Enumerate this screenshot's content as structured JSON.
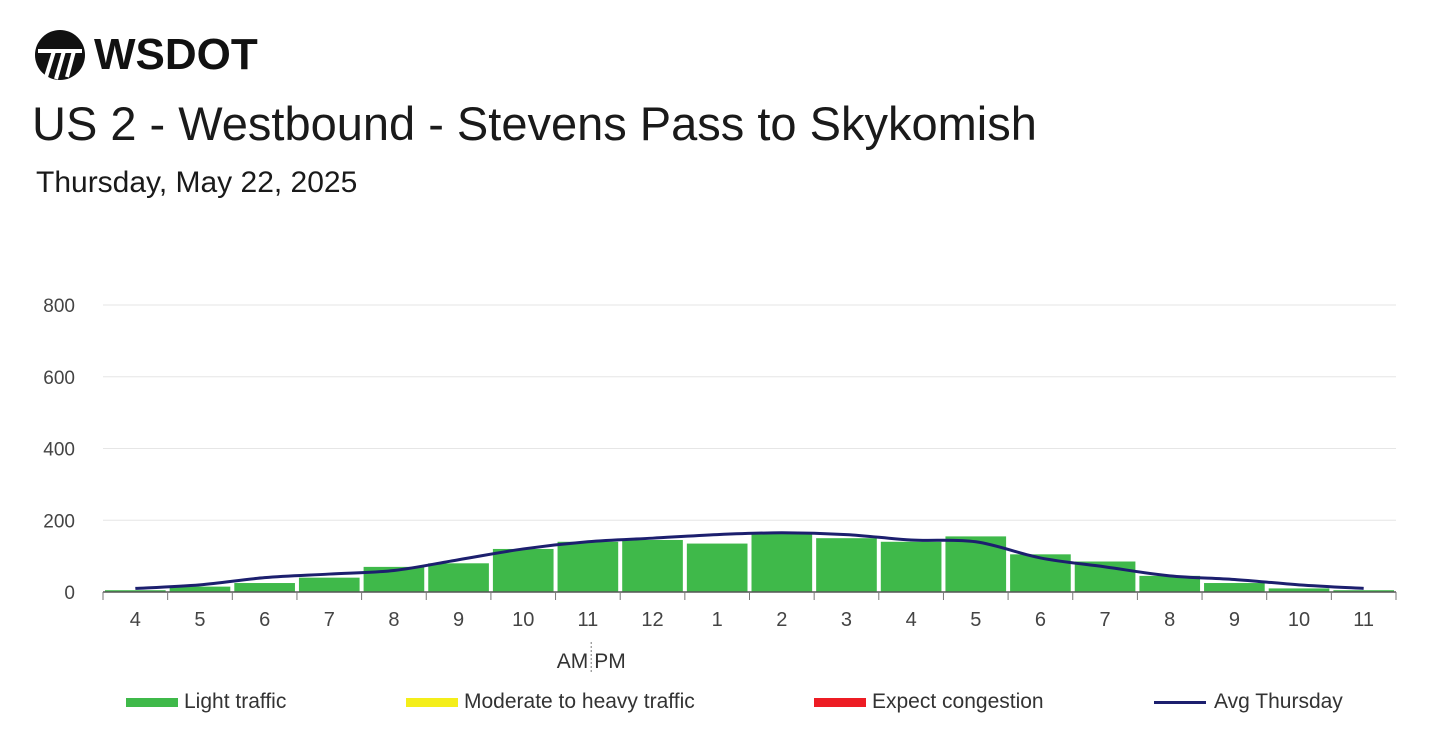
{
  "header": {
    "logo_text": "WSDOT",
    "title": "US 2 - Westbound - Stevens Pass to Skykomish",
    "subtitle": "Thursday, May 22, 2025"
  },
  "colors": {
    "light": "#3fb94a",
    "moderate": "#f4ee1a",
    "congestion": "#ed1c24",
    "avg_line": "#1c1f6e",
    "grid": "#e6e6e6"
  },
  "legend": {
    "light": "Light traffic",
    "moderate": "Moderate to heavy traffic",
    "congestion": "Expect congestion",
    "avg": "Avg Thursday"
  },
  "chart_data": {
    "type": "bar",
    "title": "US 2 - Westbound - Stevens Pass to Skykomish",
    "subtitle": "Thursday, May 22, 2025",
    "categories": [
      "4",
      "5",
      "6",
      "7",
      "8",
      "9",
      "10",
      "11",
      "12",
      "1",
      "2",
      "3",
      "4",
      "5",
      "6",
      "7",
      "8",
      "9",
      "10",
      "11"
    ],
    "ylim": [
      0,
      800
    ],
    "yticks": [
      0,
      200,
      400,
      600,
      800
    ],
    "am_pm_label": {
      "am": "AM",
      "pm": "PM"
    },
    "grid": true,
    "legend_position": "bottom",
    "series": [
      {
        "name": "Light traffic",
        "type": "bar",
        "values": [
          5,
          15,
          25,
          40,
          70,
          80,
          120,
          140,
          145,
          135,
          165,
          150,
          140,
          155,
          105,
          85,
          45,
          25,
          10,
          5
        ]
      },
      {
        "name": "Avg Thursday",
        "type": "line",
        "values": [
          10,
          20,
          40,
          50,
          60,
          90,
          120,
          140,
          150,
          160,
          165,
          160,
          145,
          140,
          95,
          70,
          45,
          35,
          20,
          10
        ]
      }
    ]
  }
}
